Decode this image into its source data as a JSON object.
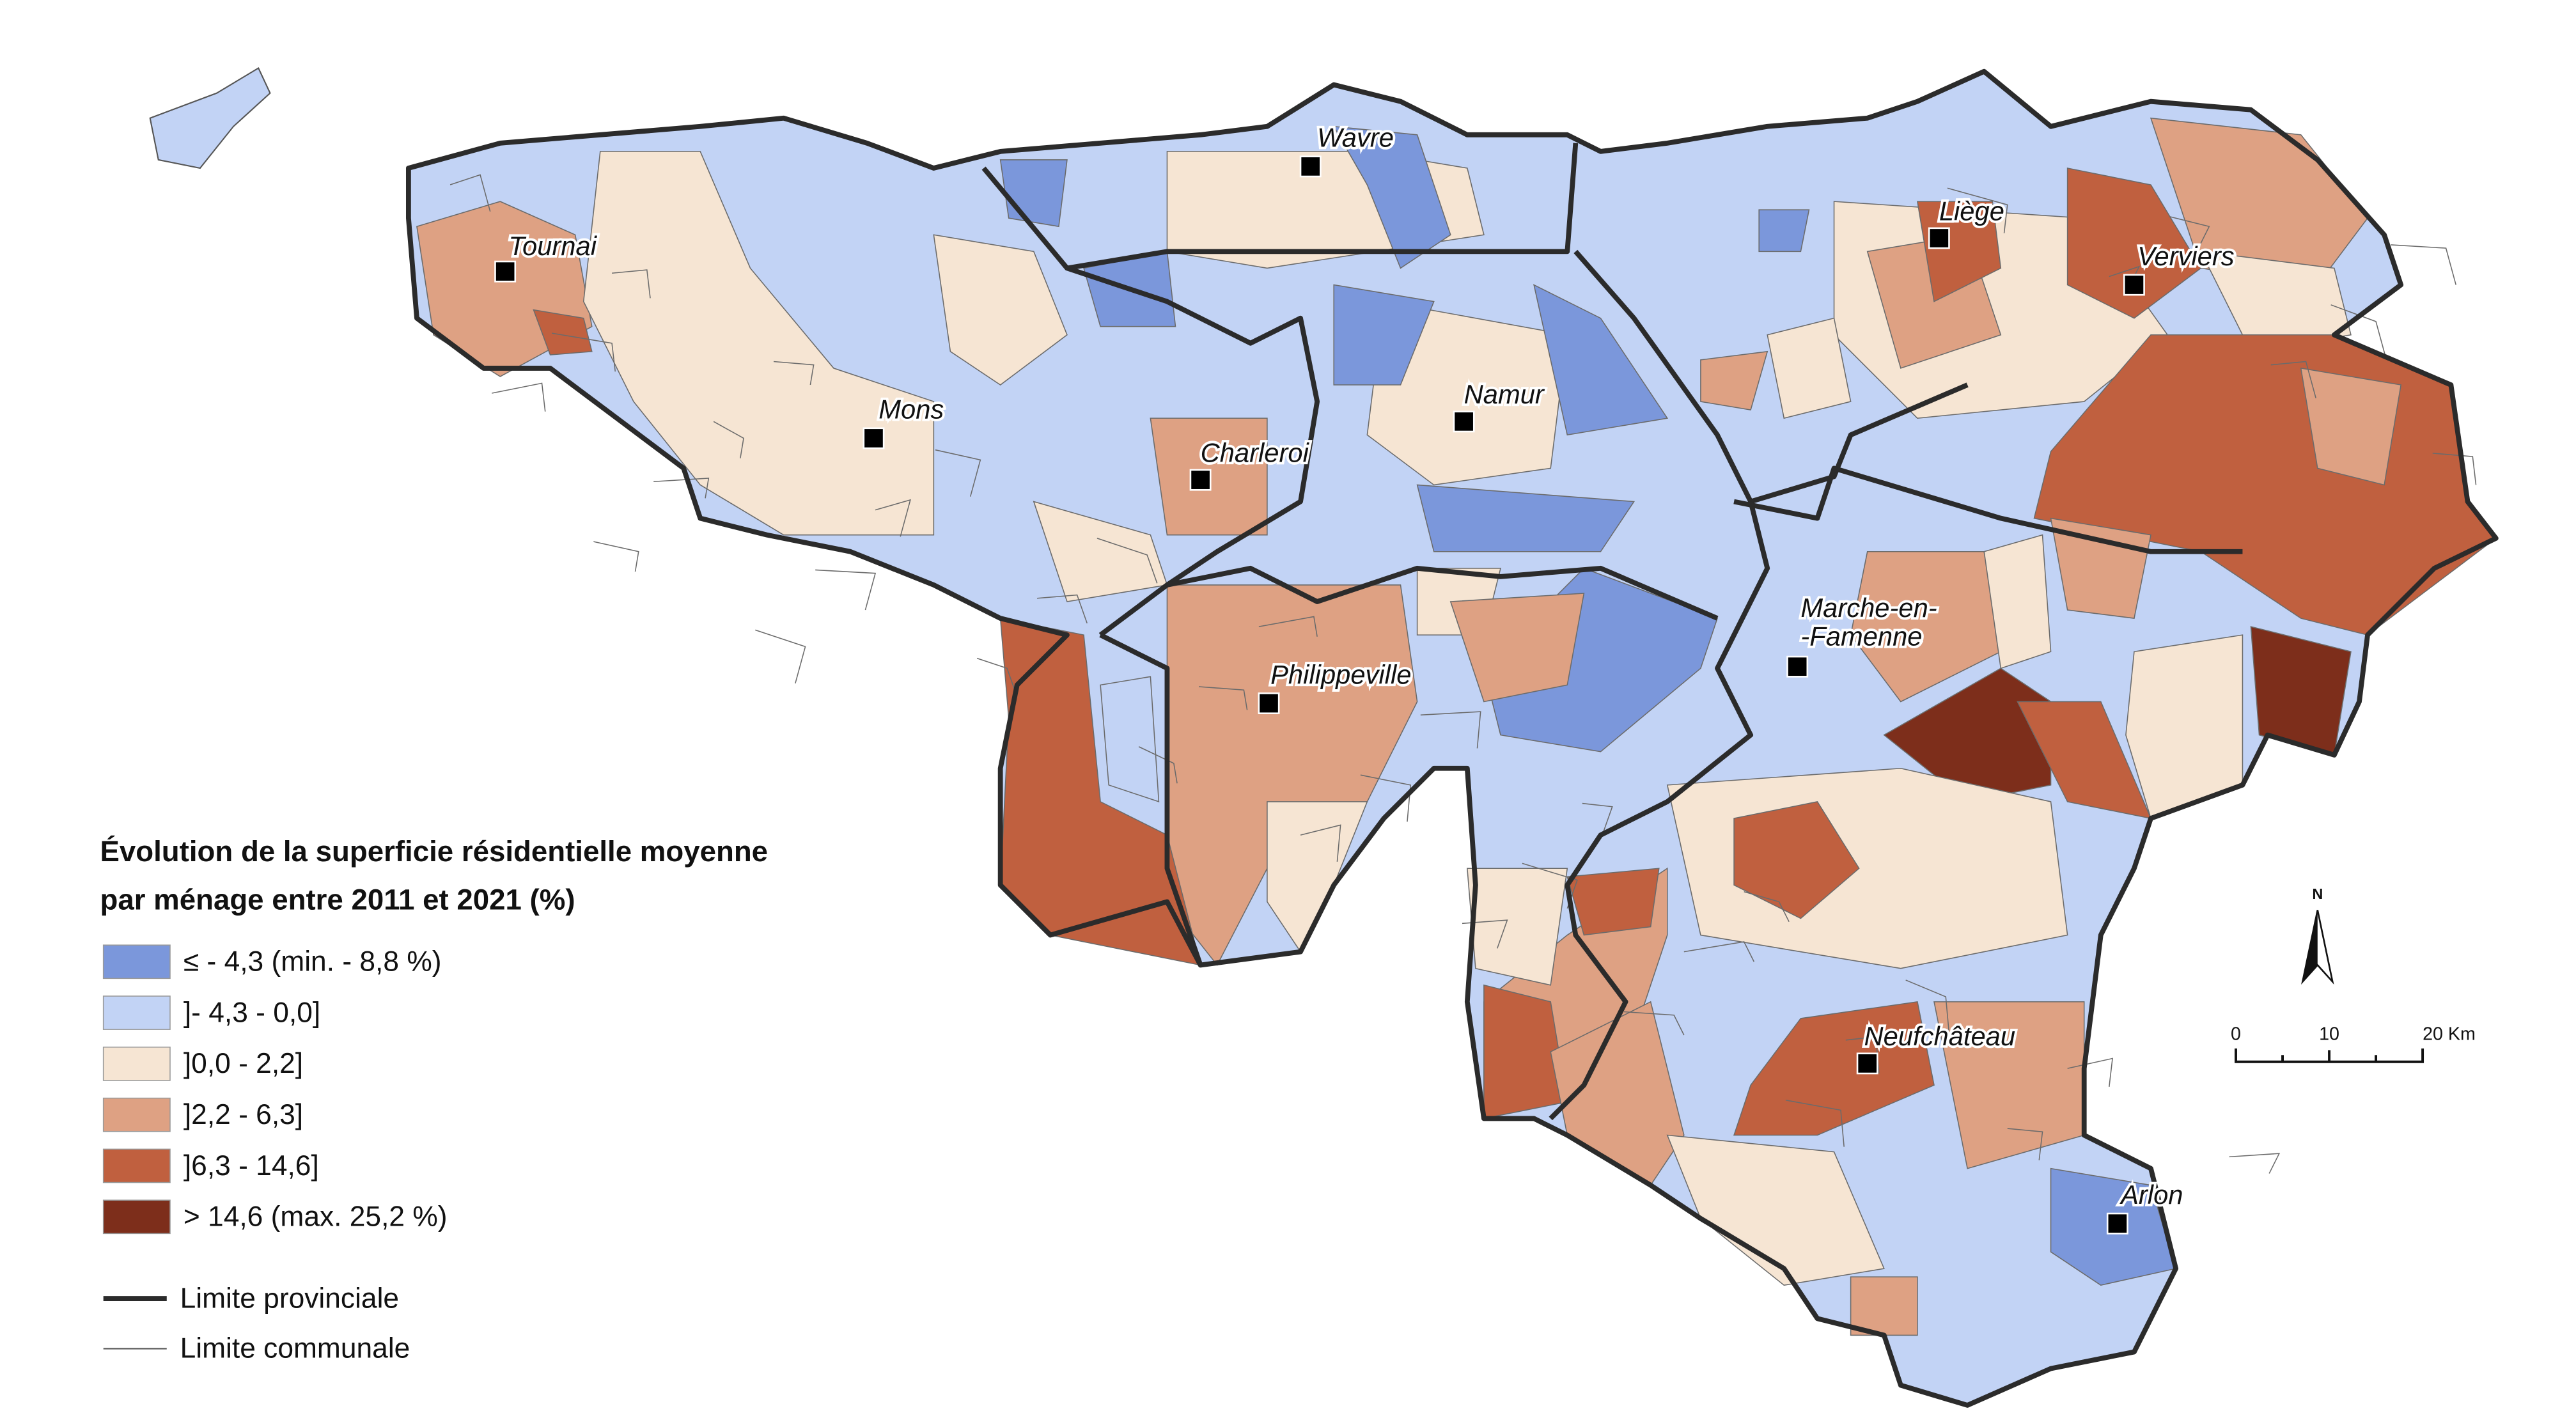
{
  "legend": {
    "title": [
      "Évolution de la superficie résidentielle moyenne",
      "par ménage entre 2011 et 2021 (%)"
    ],
    "items": [
      {
        "label": "≤ - 4,3 (min. - 8,8 %)",
        "color": "#7b97db"
      },
      {
        "label": "]- 4,3 - 0,0]",
        "color": "#c2d3f5"
      },
      {
        "label": "]0,0 - 2,2]",
        "color": "#f6e5d3"
      },
      {
        "label": "]2,2 - 6,3]",
        "color": "#dea183"
      },
      {
        "label": "]6,3 - 14,6]",
        "color": "#c0603f"
      },
      {
        "label": "> 14,6 (max. 25,2 %)",
        "color": "#7d2e1b"
      }
    ],
    "lines": [
      "Limite provinciale",
      "Limite communale"
    ]
  },
  "cities": [
    [
      "Wavre"
    ],
    [
      "Tournai"
    ],
    [
      "Liège"
    ],
    [
      "Verviers"
    ],
    [
      "Mons"
    ],
    [
      "Namur"
    ],
    [
      "Charleroi"
    ],
    [
      "Philippeville"
    ],
    [
      "Marche-en-",
      "-Famenne"
    ],
    [
      "Neufchâteau"
    ],
    [
      "Arlon"
    ]
  ],
  "north": "N",
  "scale": [
    "0",
    "10",
    "20 Km"
  ]
}
